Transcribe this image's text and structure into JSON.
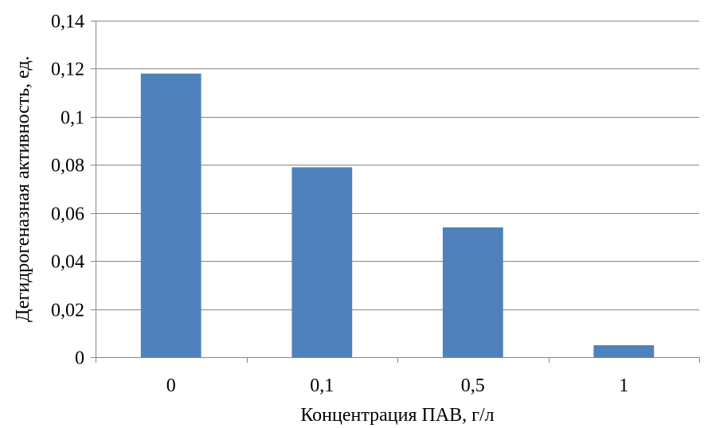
{
  "chart_data": {
    "type": "bar",
    "title": "",
    "xlabel": "Концентрация ПАВ, г/л",
    "ylabel": "Дегидрогеназная активность, ед.",
    "categories": [
      "0",
      "0,1",
      "0,5",
      "1"
    ],
    "values": [
      0.118,
      0.079,
      0.054,
      0.005
    ],
    "ylim": [
      0,
      0.14
    ],
    "yticks": [
      0,
      0.02,
      0.04,
      0.06,
      0.08,
      0.1,
      0.12,
      0.14
    ],
    "ytick_labels": [
      "0",
      "0,02",
      "0,04",
      "0,06",
      "0,08",
      "0,1",
      "0,12",
      "0,14"
    ],
    "grid": true,
    "legend": "none",
    "bar_color": "#4F81BD",
    "grid_color": "#868686",
    "axis_color": "#868686"
  }
}
